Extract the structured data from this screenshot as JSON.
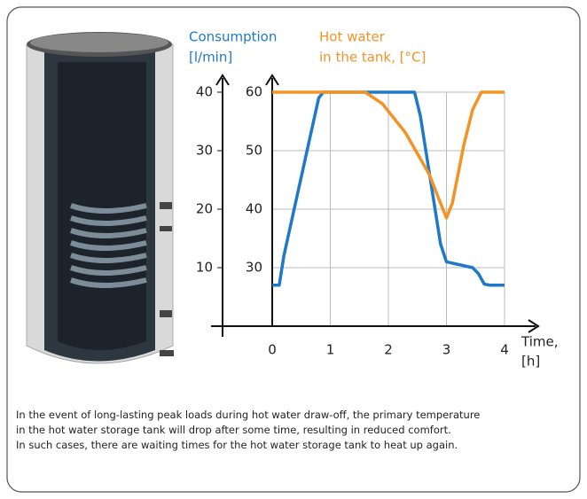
{
  "chart_data": {
    "type": "line",
    "y_label": [
      "Consumption",
      "[l/min]"
    ],
    "y2_label": [
      "Hot water",
      "in the tank, [°C]"
    ],
    "x_label": [
      "Time,",
      "[h]"
    ],
    "xlim": [
      0,
      4
    ],
    "xticks": [
      0,
      1,
      2,
      3,
      4
    ],
    "ylim": [
      0,
      40
    ],
    "yticks": [
      10,
      20,
      30,
      40
    ],
    "y2lim": [
      20,
      60
    ],
    "y2ticks": [
      30,
      40,
      50,
      60
    ],
    "grid": true,
    "series": [
      {
        "name": "Consumption",
        "color": "#1f78c8",
        "axis": "y",
        "x": [
          0,
          0.12,
          0.2,
          0.8,
          0.88,
          2.45,
          2.55,
          2.9,
          3.0,
          3.45,
          3.55,
          3.65,
          3.75,
          4
        ],
        "values": [
          7,
          7,
          12,
          39,
          40,
          40,
          36,
          14,
          11,
          10,
          9,
          7.2,
          7,
          7
        ]
      },
      {
        "name": "Hot water in the tank",
        "color": "#f39325",
        "axis": "y2",
        "x": [
          0,
          1.6,
          1.9,
          2.3,
          2.7,
          2.9,
          3.0,
          3.1,
          3.3,
          3.45,
          3.6,
          4
        ],
        "values": [
          60,
          60,
          58,
          53,
          46,
          41,
          38.5,
          41,
          51,
          57,
          60,
          60
        ]
      }
    ],
    "caption": [
      "In the event of long-lasting peak loads during hot water draw-off, the primary temperature",
      "in the hot water storage tank will drop after some time, resulting in reduced comfort.",
      "In such cases, there are waiting times for the hot water storage tank to heat up again."
    ]
  }
}
